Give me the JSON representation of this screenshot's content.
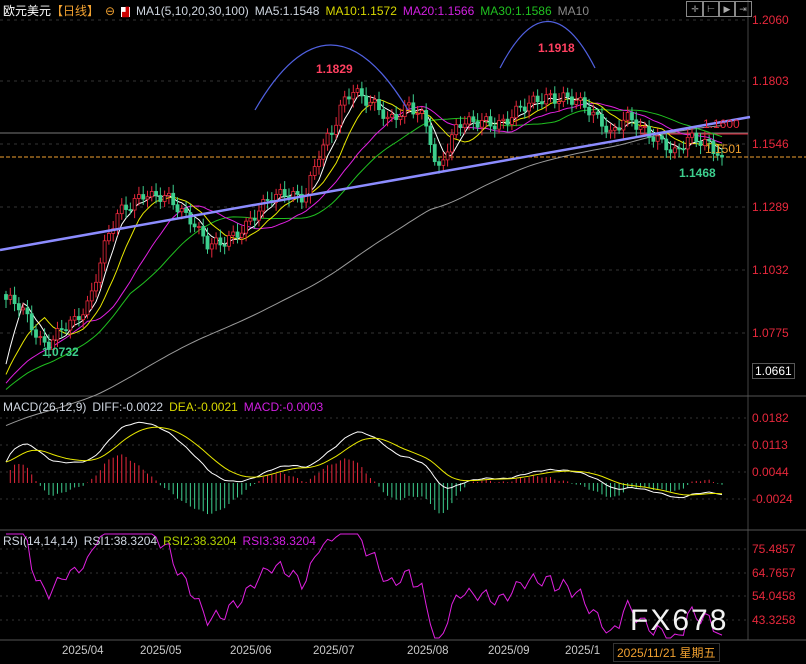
{
  "header": {
    "symbol": "欧元美元",
    "period": "【日线】",
    "indicator": "MA1(5,10,20,30,100)",
    "ma5": "MA5:1.1548",
    "ma10": "MA10:1.1572",
    "ma20": "MA20:1.1566",
    "ma30": "MA30:1.1586",
    "ma100": "MA10"
  },
  "macd_header": {
    "name": "MACD(26,12,9)",
    "diff": "DIFF:-0.0022",
    "dea": "DEA:-0.0021",
    "macd": "MACD:-0.0003"
  },
  "rsi_header": {
    "name": "RSI(14,14,14)",
    "rsi1": "RSI1:38.3204",
    "rsi2": "RSI2:38.3204",
    "rsi3": "RSI3:38.3204"
  },
  "watermark": "FX678",
  "current_date": "2025/11/21 星期五",
  "toolbar": [
    "crosshair-icon",
    "zoom-range-icon",
    "play-icon",
    "end-icon"
  ],
  "colors": {
    "up": "#e8283c",
    "down": "#3dcf8e",
    "ma5": "#ffffff",
    "ma10": "#e8e800",
    "ma20": "#e020e0",
    "ma30": "#20c020",
    "ma100": "#9a9a9a",
    "trendline": "#8c8cff"
  },
  "chart_data": {
    "type": "candlestick",
    "price_axis": {
      "ticks": [
        "1.2060",
        "1.1803",
        "1.1546",
        "1.1289",
        "1.1032",
        "1.0775",
        "1.0661"
      ],
      "range": [
        1.062,
        1.208
      ]
    },
    "x_ticks": [
      "2025/04",
      "2025/05",
      "2025/06",
      "2025/07",
      "2025/08",
      "2025/09",
      "2025/1"
    ],
    "approx_closes": [
      1.092,
      1.09,
      1.088,
      1.084,
      1.08,
      1.076,
      1.0745,
      1.077,
      1.079,
      1.081,
      1.082,
      1.087,
      1.092,
      1.103,
      1.113,
      1.12,
      1.125,
      1.128,
      1.13,
      1.134,
      1.137,
      1.135,
      1.134,
      1.133,
      1.13,
      1.128,
      1.126,
      1.125,
      1.12,
      1.115,
      1.114,
      1.113,
      1.116,
      1.118,
      1.122,
      1.125,
      1.128,
      1.13,
      1.132,
      1.133,
      1.135,
      1.136,
      1.135,
      1.135,
      1.142,
      1.15,
      1.155,
      1.16,
      1.17,
      1.176,
      1.179,
      1.175,
      1.172,
      1.17,
      1.168,
      1.165,
      1.168,
      1.17,
      1.172,
      1.168,
      1.165,
      1.157,
      1.142,
      1.152,
      1.158,
      1.165,
      1.164,
      1.163,
      1.163,
      1.164,
      1.164,
      1.165,
      1.166,
      1.168,
      1.169,
      1.17,
      1.172,
      1.174,
      1.176,
      1.175,
      1.175,
      1.173,
      1.172,
      1.17,
      1.169,
      1.167,
      1.165,
      1.16,
      1.162,
      1.165,
      1.164,
      1.162,
      1.161,
      1.16,
      1.158,
      1.155,
      1.15,
      1.152,
      1.157,
      1.158,
      1.158,
      1.157,
      1.153,
      1.1501
    ],
    "annotations": [
      {
        "label": "1.1829",
        "color": "#ff4060"
      },
      {
        "label": "1.1918",
        "color": "#ff4060"
      },
      {
        "label": "1.0732",
        "color": "#3dcf8e"
      },
      {
        "label": "1.1468",
        "color": "#3dcf8e"
      },
      {
        "label": "1.1600",
        "color": "#e8283c"
      },
      {
        "label": "1.1501",
        "color": "#f0a030"
      }
    ],
    "levels": [
      1.16,
      1.1501
    ],
    "macd": {
      "ticks": [
        "0.0182",
        "0.0113",
        "0.0044",
        "-0.0024"
      ]
    },
    "rsi": {
      "ticks": [
        "75.4857",
        "64.7657",
        "54.0458",
        "43.3258"
      ]
    }
  }
}
